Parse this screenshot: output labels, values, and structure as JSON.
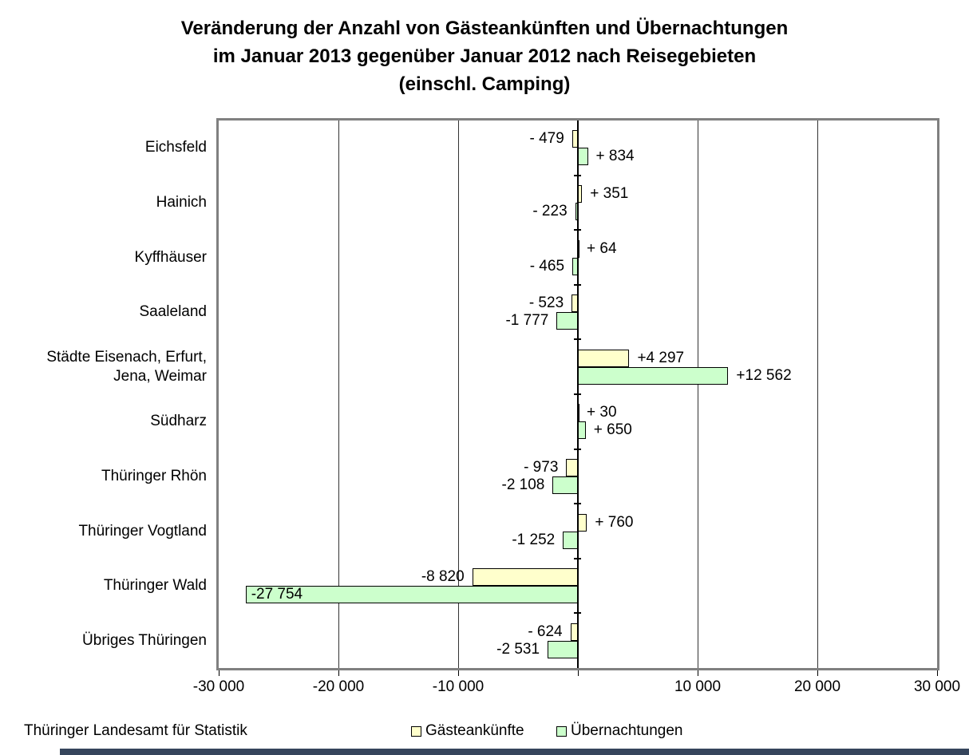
{
  "title": {
    "line1": "Veränderung der Anzahl von Gästeankünften und Übernachtungen",
    "line2": "im Januar 2013 gegenüber Januar 2012 nach Reisegebieten",
    "line3": "(einschl. Camping)"
  },
  "source": "Thüringer Landesamt für Statistik",
  "legend": {
    "items": [
      {
        "label": "Gästeankünfte",
        "color": "#ffffcc"
      },
      {
        "label": "Übernachtungen",
        "color": "#ccffcc"
      }
    ]
  },
  "chart_data": {
    "type": "bar",
    "orientation": "horizontal",
    "title": "Veränderung der Anzahl von Gästeankünften und Übernachtungen im Januar 2013 gegenüber Januar 2012 nach Reisegebieten (einschl. Camping)",
    "xlim": [
      -30000,
      30000
    ],
    "grid": true,
    "legend_position": "bottom",
    "x_ticks": [
      {
        "value": -30000,
        "label": "-30 000"
      },
      {
        "value": -20000,
        "label": "-20 000"
      },
      {
        "value": -10000,
        "label": "-10 000"
      },
      {
        "value": 0,
        "label": ""
      },
      {
        "value": 10000,
        "label": "10 000"
      },
      {
        "value": 20000,
        "label": "20 000"
      },
      {
        "value": 30000,
        "label": "30 000"
      }
    ],
    "categories": [
      "Eichsfeld",
      "Hainich",
      "Kyffhäuser",
      "Saaleland",
      "Städte Eisenach, Erfurt, Jena, Weimar",
      "Südharz",
      "Thüringer Rhön",
      "Thüringer Vogtland",
      "Thüringer Wald",
      "Übriges Thüringen"
    ],
    "category_display_lines": [
      [
        "Eichsfeld"
      ],
      [
        "Hainich"
      ],
      [
        "Kyffhäuser"
      ],
      [
        "Saaleland"
      ],
      [
        "Städte Eisenach, Erfurt,",
        "Jena, Weimar"
      ],
      [
        "Südharz"
      ],
      [
        "Thüringer Rhön"
      ],
      [
        "Thüringer Vogtland"
      ],
      [
        "Thüringer Wald"
      ],
      [
        "Übriges Thüringen"
      ]
    ],
    "series": [
      {
        "name": "Gästeankünfte",
        "color": "#ffffcc",
        "values": [
          -479,
          351,
          64,
          -523,
          4297,
          30,
          -973,
          760,
          -8820,
          -624
        ],
        "labels": [
          "- 479",
          "+ 351",
          "+ 64",
          "- 523",
          "+4 297",
          "+ 30",
          "- 973",
          "+ 760",
          "-8 820",
          "- 624"
        ]
      },
      {
        "name": "Übernachtungen",
        "color": "#ccffcc",
        "values": [
          834,
          -223,
          -465,
          -1777,
          12562,
          650,
          -2108,
          -1252,
          -27754,
          -2531
        ],
        "labels": [
          "+ 834",
          "- 223",
          "- 465",
          "-1 777",
          "+12 562",
          "+ 650",
          "-2 108",
          "-1 252",
          "-27 754",
          "-2 531"
        ]
      }
    ],
    "inside_labels": [
      {
        "series": 1,
        "index": 8
      }
    ],
    "colors": {
      "bar_border": "#000000",
      "plot_border": "#808080",
      "grid_line": "#333333",
      "zero_axis": "#000000"
    }
  }
}
